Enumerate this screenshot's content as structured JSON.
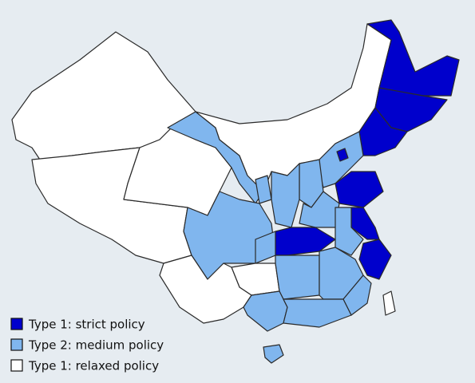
{
  "legend": [
    {
      "label": "Type 1: strict policy",
      "color": "#0000cc"
    },
    {
      "label": "Type 2: medium policy",
      "color": "#80b6ee"
    },
    {
      "label": "Type 1: relaxed policy",
      "color": "#ffffff"
    }
  ]
}
